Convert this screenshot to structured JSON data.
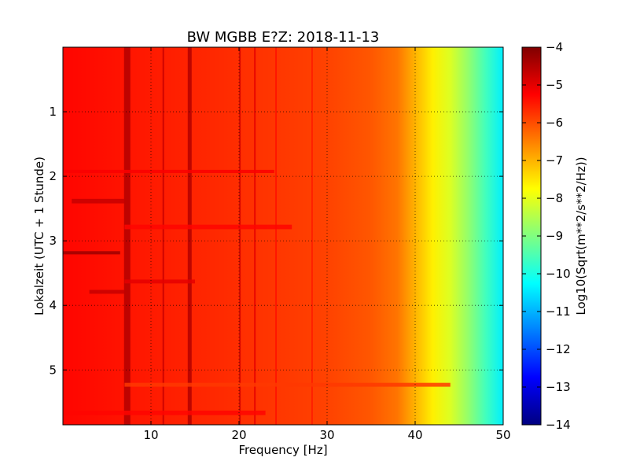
{
  "chart_data": {
    "type": "heatmap",
    "title": "BW MGBB E?Z: 2018-11-13",
    "xlabel": "Frequency [Hz]",
    "ylabel": "Lokalzeit (UTC + 1 Stunde)",
    "xlim": [
      0,
      50
    ],
    "ylim": [
      5.85,
      0.0
    ],
    "x_ticks": [
      10,
      20,
      30,
      40,
      50
    ],
    "x_tick_labels": [
      "10",
      "20",
      "30",
      "40",
      "50"
    ],
    "y_ticks": [
      1,
      2,
      3,
      4,
      5
    ],
    "y_tick_labels": [
      "1",
      "2",
      "3",
      "4",
      "5"
    ],
    "grid": true,
    "colormap": "jet",
    "colorbar": {
      "label": "Log10(Sqrt(m**2/s**2/Hz))",
      "range": [
        -14,
        -4
      ],
      "ticks": [
        -4,
        -5,
        -6,
        -7,
        -8,
        -9,
        -10,
        -11,
        -12,
        -13,
        -14
      ],
      "tick_labels": [
        "−4",
        "−5",
        "−6",
        "−7",
        "−8",
        "−9",
        "−10",
        "−11",
        "−12",
        "−13",
        "−14"
      ]
    },
    "spectrum_profile": {
      "frequency_hz": [
        0,
        10,
        20,
        30,
        35,
        38,
        40,
        42,
        44,
        46,
        48,
        50
      ],
      "log_level": [
        -5.3,
        -5.5,
        -5.7,
        -5.9,
        -6.1,
        -6.4,
        -7.0,
        -7.6,
        -8.1,
        -8.8,
        -9.6,
        -10.4
      ]
    },
    "spectral_lines_hz": [
      7.3,
      11.4,
      14.4,
      20.1,
      21.8,
      24.2,
      28.3
    ],
    "horizontal_bands": [
      {
        "t_start": 1.9,
        "t_end": 1.95,
        "f_start": 0,
        "f_end": 24,
        "log_level": -5.2
      },
      {
        "t_start": 2.35,
        "t_end": 2.42,
        "f_start": 1,
        "f_end": 7,
        "log_level": -4.7
      },
      {
        "t_start": 2.75,
        "t_end": 2.82,
        "f_start": 7,
        "f_end": 26,
        "log_level": -5.3
      },
      {
        "t_start": 3.16,
        "t_end": 3.21,
        "f_start": 0,
        "f_end": 6.5,
        "log_level": -4.3
      },
      {
        "t_start": 3.6,
        "t_end": 3.66,
        "f_start": 7,
        "f_end": 15,
        "log_level": -5.0
      },
      {
        "t_start": 3.76,
        "t_end": 3.82,
        "f_start": 3,
        "f_end": 7,
        "log_level": -4.7
      },
      {
        "t_start": 5.2,
        "t_end": 5.26,
        "f_start": 7,
        "f_end": 44,
        "log_level": -5.8
      },
      {
        "t_start": 5.63,
        "t_end": 5.7,
        "f_start": 0,
        "f_end": 23,
        "log_level": -5.3
      }
    ]
  }
}
